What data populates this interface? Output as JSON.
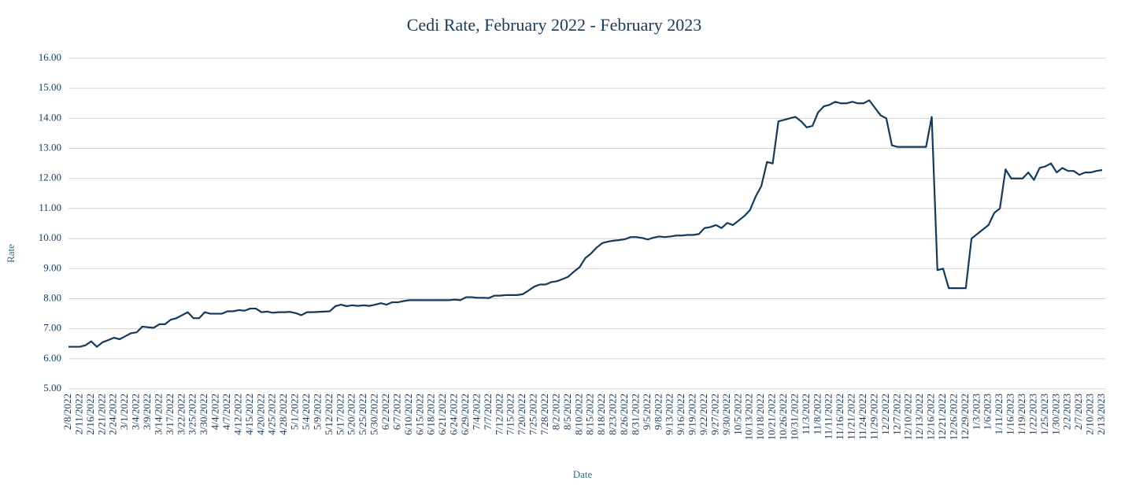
{
  "chart_data": {
    "type": "line",
    "title": "Cedi Rate, February 2022 - February 2023",
    "x_label": "Date",
    "y_label": "Rate",
    "color": "#123a5c",
    "grid": true,
    "ylim": [
      5,
      16
    ],
    "yticks": [
      {
        "value": 5,
        "label": "5.00"
      },
      {
        "value": 6,
        "label": "6.00"
      },
      {
        "value": 7,
        "label": "7.00"
      },
      {
        "value": 8,
        "label": "8.00"
      },
      {
        "value": 9,
        "label": "9.00"
      },
      {
        "value": 10,
        "label": "10.00"
      },
      {
        "value": 11,
        "label": "11.00"
      },
      {
        "value": 12,
        "label": "12.00"
      },
      {
        "value": 13,
        "label": "13.00"
      },
      {
        "value": 14,
        "label": "14.00"
      },
      {
        "value": 15,
        "label": "15.00"
      },
      {
        "value": 16,
        "label": "16.00"
      }
    ],
    "categories": [
      "2/8/2022",
      null,
      "2/11/2022",
      null,
      "2/16/2022",
      null,
      "2/21/2022",
      null,
      "2/24/2022",
      null,
      "3/1/2022",
      null,
      "3/4/2022",
      null,
      "3/9/2022",
      null,
      "3/14/2022",
      null,
      "3/17/2022",
      null,
      "3/22/2022",
      null,
      "3/25/2022",
      null,
      "3/30/2022",
      null,
      "4/4/2022",
      null,
      "4/7/2022",
      null,
      "4/12/2022",
      null,
      "4/15/2022",
      null,
      "4/20/2022",
      null,
      "4/25/2022",
      null,
      "4/28/2022",
      null,
      "5/1/2022",
      null,
      "5/4/2022",
      null,
      "5/9/2022",
      null,
      "5/12/2022",
      null,
      "5/17/2022",
      null,
      "5/20/2022",
      null,
      "5/25/2022",
      null,
      "5/30/2022",
      null,
      "6/2/2022",
      null,
      "6/7/2022",
      null,
      "6/10/2022",
      null,
      "6/15/2022",
      null,
      "6/18/2022",
      null,
      "6/21/2022",
      null,
      "6/24/2022",
      null,
      "6/29/2022",
      null,
      "7/4/2022",
      null,
      "7/7/2022",
      null,
      "7/12/2022",
      null,
      "7/15/2022",
      null,
      "7/20/2022",
      null,
      "7/25/2022",
      null,
      "7/28/2022",
      null,
      "8/2/2022",
      null,
      "8/5/2022",
      null,
      "8/10/2022",
      null,
      "8/15/2022",
      null,
      "8/18/2022",
      null,
      "8/23/2022",
      null,
      "8/26/2022",
      null,
      "8/31/2022",
      null,
      "9/5/2022",
      null,
      "9/8/2022",
      null,
      "9/13/2022",
      null,
      "9/16/2022",
      null,
      "9/19/2022",
      null,
      "9/22/2022",
      null,
      "9/27/2022",
      null,
      "9/30/2022",
      null,
      "10/5/2022",
      null,
      "10/13/2022",
      null,
      "10/18/2022",
      null,
      "10/21/2022",
      null,
      "10/26/2022",
      null,
      "10/31/2022",
      null,
      "11/3/2022",
      null,
      "11/8/2022",
      null,
      "11/11/2022",
      null,
      "11/16/2022",
      null,
      "11/21/2022",
      null,
      "11/24/2022",
      null,
      "11/29/2022",
      null,
      "12/2/2022",
      null,
      "12/7/2022",
      null,
      "12/10/2022",
      null,
      "12/13/2022",
      null,
      "12/16/2022",
      null,
      "12/21/2022",
      null,
      "12/26/2022",
      null,
      "12/29/2022",
      null,
      "1/3/2023",
      null,
      "1/6/2023",
      null,
      "1/11/2023",
      null,
      "1/16/2023",
      null,
      "1/19/2023",
      null,
      "1/22/2023",
      null,
      "1/25/2023",
      null,
      "1/30/2023",
      null,
      "2/2/2023",
      null,
      "2/7/2023",
      null,
      "2/10/2023",
      null,
      "2/13/2023"
    ],
    "values": [
      6.4,
      6.4,
      6.4,
      6.45,
      6.58,
      6.4,
      6.55,
      6.62,
      6.7,
      6.65,
      6.75,
      6.85,
      6.88,
      7.07,
      7.05,
      7.03,
      7.15,
      7.15,
      7.3,
      7.35,
      7.45,
      7.55,
      7.35,
      7.35,
      7.55,
      7.5,
      7.5,
      7.5,
      7.58,
      7.58,
      7.62,
      7.6,
      7.67,
      7.67,
      7.55,
      7.57,
      7.53,
      7.55,
      7.55,
      7.56,
      7.52,
      7.45,
      7.55,
      7.55,
      7.56,
      7.57,
      7.58,
      7.75,
      7.8,
      7.75,
      7.78,
      7.76,
      7.78,
      7.76,
      7.8,
      7.85,
      7.8,
      7.88,
      7.88,
      7.92,
      7.95,
      7.95,
      7.95,
      7.95,
      7.95,
      7.95,
      7.95,
      7.95,
      7.97,
      7.95,
      8.05,
      8.05,
      8.03,
      8.03,
      8.02,
      8.1,
      8.1,
      8.12,
      8.12,
      8.12,
      8.15,
      8.27,
      8.4,
      8.47,
      8.47,
      8.55,
      8.58,
      8.65,
      8.73,
      8.9,
      9.05,
      9.35,
      9.5,
      9.7,
      9.85,
      9.9,
      9.93,
      9.95,
      9.98,
      10.05,
      10.05,
      10.02,
      9.97,
      10.03,
      10.07,
      10.05,
      10.07,
      10.1,
      10.1,
      10.12,
      10.12,
      10.15,
      10.35,
      10.38,
      10.45,
      10.35,
      10.52,
      10.45,
      10.6,
      10.75,
      10.95,
      11.4,
      11.75,
      12.55,
      12.5,
      13.9,
      13.95,
      14.0,
      14.05,
      13.9,
      13.7,
      13.75,
      14.2,
      14.4,
      14.45,
      14.55,
      14.5,
      14.5,
      14.55,
      14.5,
      14.5,
      14.6,
      14.35,
      14.1,
      14.0,
      13.1,
      13.05,
      13.05,
      13.05,
      13.05,
      13.05,
      13.05,
      14.05,
      8.95,
      9.0,
      8.35,
      8.35,
      8.35,
      8.35,
      10.0,
      10.15,
      10.3,
      10.45,
      10.85,
      11.0,
      12.3,
      12.0,
      12.0,
      12.0,
      12.2,
      11.95,
      12.35,
      12.4,
      12.5,
      12.2,
      12.35,
      12.25,
      12.25,
      12.12,
      12.2,
      12.2,
      12.25,
      12.28
    ]
  }
}
